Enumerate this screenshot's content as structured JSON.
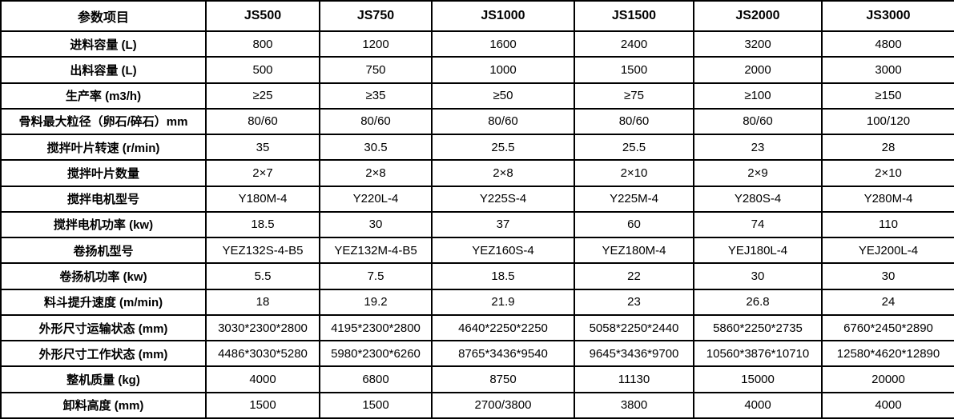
{
  "colors": {
    "border": "#000000",
    "text": "#000000",
    "background": "#ffffff"
  },
  "table": {
    "columns": [
      "参数项目",
      "JS500",
      "JS750",
      "JS1000",
      "JS1500",
      "JS2000",
      "JS3000"
    ],
    "rows": [
      {
        "label": "进料容量 (L)",
        "values": [
          "800",
          "1200",
          "1600",
          "2400",
          "3200",
          "4800"
        ]
      },
      {
        "label": "出料容量 (L)",
        "values": [
          "500",
          "750",
          "1000",
          "1500",
          "2000",
          "3000"
        ]
      },
      {
        "label": "生产率 (m3/h)",
        "values": [
          "≥25",
          "≥35",
          "≥50",
          "≥75",
          "≥100",
          "≥150"
        ]
      },
      {
        "label": "骨料最大粒径（卵石/碎石）mm",
        "values": [
          "80/60",
          "80/60",
          "80/60",
          "80/60",
          "80/60",
          "100/120"
        ]
      },
      {
        "label": "搅拌叶片转速 (r/min)",
        "values": [
          "35",
          "30.5",
          "25.5",
          "25.5",
          "23",
          "28"
        ]
      },
      {
        "label": "搅拌叶片数量",
        "values": [
          "2×7",
          "2×8",
          "2×8",
          "2×10",
          "2×9",
          "2×10"
        ]
      },
      {
        "label": "搅拌电机型号",
        "values": [
          "Y180M-4",
          "Y220L-4",
          "Y225S-4",
          "Y225M-4",
          "Y280S-4",
          "Y280M-4"
        ]
      },
      {
        "label": "搅拌电机功率 (kw)",
        "values": [
          "18.5",
          "30",
          "37",
          "60",
          "74",
          "110"
        ]
      },
      {
        "label": "卷扬机型号",
        "values": [
          "YEZ132S-4-B5",
          "YEZ132M-4-B5",
          "YEZ160S-4",
          "YEZ180M-4",
          "YEJ180L-4",
          "YEJ200L-4"
        ]
      },
      {
        "label": "卷扬机功率 (kw)",
        "values": [
          "5.5",
          "7.5",
          "18.5",
          "22",
          "30",
          "30"
        ]
      },
      {
        "label": "料斗提升速度 (m/min)",
        "values": [
          "18",
          "19.2",
          "21.9",
          "23",
          "26.8",
          "24"
        ]
      },
      {
        "label": "外形尺寸运输状态 (mm)",
        "values": [
          "3030*2300*2800",
          "4195*2300*2800",
          "4640*2250*2250",
          "5058*2250*2440",
          "5860*2250*2735",
          "6760*2450*2890"
        ]
      },
      {
        "label": "外形尺寸工作状态 (mm)",
        "values": [
          "4486*3030*5280",
          "5980*2300*6260",
          "8765*3436*9540",
          "9645*3436*9700",
          "10560*3876*10710",
          "12580*4620*12890"
        ]
      },
      {
        "label": "整机质量 (kg)",
        "values": [
          "4000",
          "6800",
          "8750",
          "11130",
          "15000",
          "20000"
        ]
      },
      {
        "label": "卸料高度 (mm)",
        "values": [
          "1500",
          "1500",
          "2700/3800",
          "3800",
          "4000",
          "4000"
        ]
      }
    ]
  }
}
